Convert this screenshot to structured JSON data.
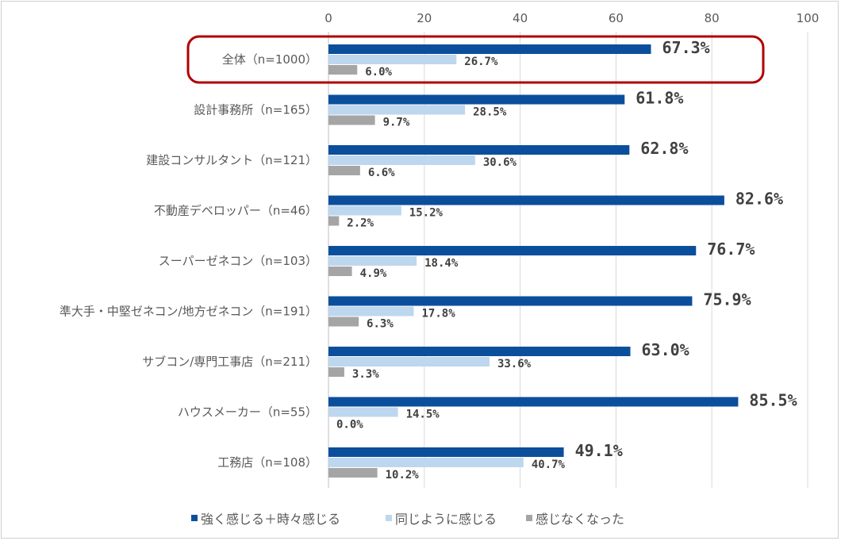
{
  "chart_data": {
    "type": "bar",
    "orientation": "horizontal",
    "categories": [
      "全体（n=1000）",
      "設計事務所（n=165）",
      "建設コンサルタント（n=121）",
      "不動産デベロッパー（n=46）",
      "スーパーゼネコン（n=103）",
      "準大手・中堅ゼネコン/地方ゼネコン（n=191）",
      "サブコン/専門工事店（n=211）",
      "ハウスメーカー（n=55）",
      "工務店（n=108）"
    ],
    "series": [
      {
        "name": "強く感じる＋時々感じる",
        "color": "#0b4f9c",
        "values": [
          67.3,
          61.8,
          62.8,
          82.6,
          76.7,
          75.9,
          63.0,
          85.5,
          49.1
        ]
      },
      {
        "name": "同じように感じる",
        "color": "#bdd7ee",
        "values": [
          26.7,
          28.5,
          30.6,
          15.2,
          18.4,
          17.8,
          33.6,
          14.5,
          40.7
        ]
      },
      {
        "name": "感じなくなった",
        "color": "#a5a5a5",
        "values": [
          6.0,
          9.7,
          6.6,
          2.2,
          4.9,
          6.3,
          3.3,
          0.0,
          10.2
        ]
      }
    ],
    "xlim": [
      0,
      100
    ],
    "xticks": [
      0,
      20,
      40,
      60,
      80,
      100
    ],
    "grid": true,
    "legend": "bottom",
    "highlight": {
      "category": "全体（n=1000）",
      "color": "#b00000"
    }
  }
}
